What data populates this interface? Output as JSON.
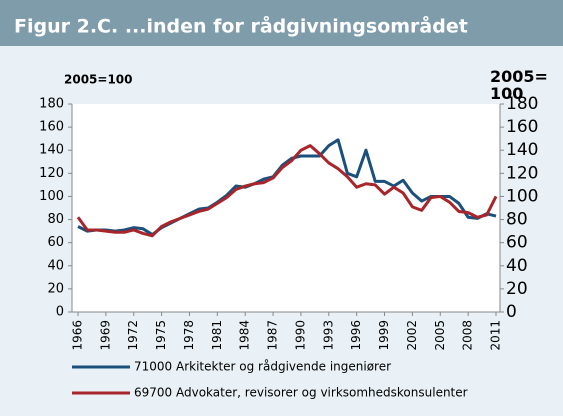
{
  "chart_data": {
    "type": "line",
    "title": "Figur 2.C. ...inden for rådgivningsområdet",
    "ylabel": "2005=100",
    "y2label": "2005=100",
    "x": [
      1966,
      1967,
      1968,
      1969,
      1970,
      1971,
      1972,
      1973,
      1974,
      1975,
      1976,
      1977,
      1978,
      1979,
      1980,
      1981,
      1982,
      1983,
      1984,
      1985,
      1986,
      1987,
      1988,
      1989,
      1990,
      1991,
      1992,
      1993,
      1994,
      1995,
      1996,
      1997,
      1998,
      1999,
      2000,
      2001,
      2002,
      2003,
      2004,
      2005,
      2006,
      2007,
      2008,
      2009,
      2010,
      2011
    ],
    "xlim": [
      1966,
      2011
    ],
    "xticks": [
      1966,
      1969,
      1972,
      1975,
      1978,
      1981,
      1984,
      1987,
      1990,
      1993,
      1996,
      1999,
      2002,
      2005,
      2008,
      2011
    ],
    "ylim": [
      0,
      180
    ],
    "yticks": [
      0,
      20,
      40,
      60,
      80,
      100,
      120,
      140,
      160,
      180
    ],
    "y2lim": [
      0,
      180
    ],
    "y2ticks": [
      0,
      20,
      40,
      60,
      80,
      100,
      120,
      140,
      160,
      180
    ],
    "grid": false,
    "legend": "bottom",
    "series": [
      {
        "name": "71000 Arkitekter og rådgivende ingeniører",
        "color": "#1b4f7c",
        "values": [
          74,
          70,
          71,
          71,
          70,
          71,
          73,
          72,
          67,
          73,
          77,
          81,
          85,
          89,
          90,
          95,
          101,
          109,
          108,
          111,
          115,
          117,
          127,
          133,
          135,
          135,
          135,
          144,
          149,
          120,
          117,
          140,
          113,
          113,
          109,
          114,
          103,
          96,
          100,
          100,
          100,
          94,
          82,
          81,
          85,
          83
        ]
      },
      {
        "name": "69700 Advokater, revisorer og virksomhedskonsulenter",
        "color": "#a8262b",
        "values": [
          82,
          71,
          71,
          70,
          69,
          69,
          71,
          68,
          66,
          74,
          78,
          81,
          84,
          87,
          89,
          94,
          99,
          106,
          109,
          111,
          112,
          116,
          125,
          131,
          140,
          144,
          137,
          129,
          124,
          117,
          108,
          111,
          110,
          102,
          108,
          103,
          91,
          88,
          99,
          100,
          95,
          87,
          86,
          82,
          84,
          100
        ]
      }
    ]
  }
}
